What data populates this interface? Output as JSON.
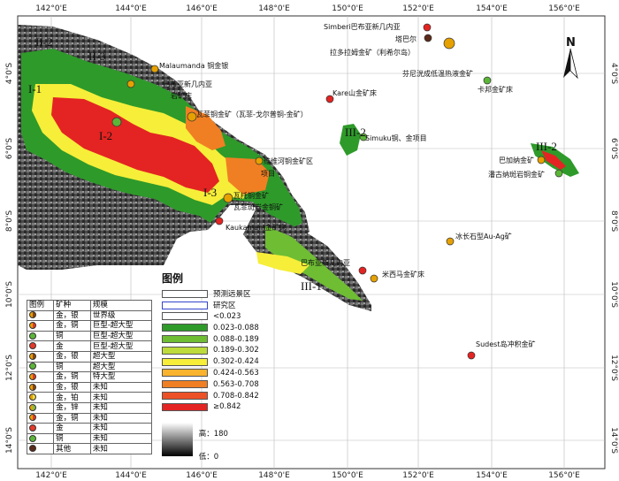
{
  "axes": {
    "top_ticks": [
      "142°0'E",
      "144°0'E",
      "146°0'E",
      "148°0'E",
      "150°0'E",
      "152°0'E",
      "154°0'E",
      "156°0'E"
    ],
    "bottom_ticks": [
      "142°0'E",
      "144°0'E",
      "146°0'E",
      "148°0'E",
      "150°0'E",
      "152°0'E",
      "154°0'E",
      "156°0'E"
    ],
    "left_ticks": [
      "4°0'S",
      "6°0'S",
      "8°0'S",
      "10°0'S",
      "12°0'S",
      "14°0'S"
    ],
    "right_ticks": [
      "4°0'S",
      "6°0'S",
      "8°0'S",
      "10°0'S",
      "12°0'S",
      "14°0'S"
    ]
  },
  "north_arrow": "N",
  "regions": [
    "II-2",
    "II-3",
    "I-1",
    "I-2",
    "I-3",
    "III-1",
    "III-2",
    "III-2"
  ],
  "map_labels": {
    "simberi": "Simberi巴布亚新几内亚",
    "tabar": "塔巴尔",
    "lihir": "拉多拉姆金矿（利希尔岛）",
    "fennell": "芬尼洸成低温热液金矿",
    "karbon": "卡邦金矿床",
    "kare": "Kare山金矿床",
    "simuku": "Simuku铜、金项目",
    "bajana": "巴加纳金矿",
    "panguna": "潘古纳斑岩铜金矿",
    "malaumanda": "Malaumanda 铜金银",
    "png_left": "巴布亚新几内亚",
    "porgera_frag": "岩矿床",
    "wafi": "瓦菲铜金矿（瓦菲-戈尔普铜-金矿）",
    "weiwei": "维维河铜金矿区",
    "hidden": "项目",
    "kerema": "瓦托铜金矿",
    "golpu": "瓦菲斑岩金铜矿",
    "kainantu": "Kaukamani金矿床",
    "png_right": "巴布亚新几内亚",
    "misima": "米西马金矿床",
    "woodlark": "冰长石型Au-Ag矿",
    "sudest": "Sudest岛冲积金矿"
  },
  "legend": {
    "title": "图例",
    "items": [
      "预测远景区",
      "研究区",
      "<0.023",
      "0.023-0.088",
      "0.088-0.189",
      "0.189-0.302",
      "0.302-0.424",
      "0.424-0.563",
      "0.563-0.708",
      "0.708-0.842",
      "≥0.842"
    ],
    "colors": [
      "#ffffff",
      "#ffffff",
      "#ffffff",
      "#2e9a2a",
      "#6ebd33",
      "#bddb3a",
      "#f6ee39",
      "#f9b32d",
      "#f07f23",
      "#ec5026",
      "#e42422"
    ],
    "elevation_high": "高：180",
    "elevation_low": "低：0"
  },
  "mineral_table": {
    "headers": [
      "图例",
      "矿种",
      "规模"
    ],
    "rows": [
      [
        "金，银",
        "世界级"
      ],
      [
        "金，铜",
        "巨型-超大型"
      ],
      [
        "铜",
        "巨型-超大型"
      ],
      [
        "金",
        "巨型-超大型"
      ],
      [
        "金，银",
        "超大型"
      ],
      [
        "铜",
        "超大型"
      ],
      [
        "金，铜",
        "特大型"
      ],
      [
        "金，银",
        "未知"
      ],
      [
        "金，铂",
        "未知"
      ],
      [
        "金，锌",
        "未知"
      ],
      [
        "金，铜",
        "未知"
      ],
      [
        "金",
        "未知"
      ],
      [
        "铜",
        "未知"
      ],
      [
        "其他",
        "未知"
      ]
    ],
    "dot_colors": [
      [
        "#e6a100",
        "#8b4513"
      ],
      [
        "#e6a100",
        "#e43a2a"
      ],
      [
        "#5bb638",
        "#5bb638"
      ],
      [
        "#e43a2a",
        "#e43a2a"
      ],
      [
        "#e6a100",
        "#8b4513"
      ],
      [
        "#5bb638",
        "#5bb638"
      ],
      [
        "#e6a100",
        "#e43a2a"
      ],
      [
        "#e6a100",
        "#8b4513"
      ],
      [
        "#e6a100",
        "#e9d94a"
      ],
      [
        "#e6a100",
        "#7fbf4a"
      ],
      [
        "#e6a100",
        "#e43a2a"
      ],
      [
        "#e43a2a",
        "#e43a2a"
      ],
      [
        "#5bb638",
        "#5bb638"
      ],
      [
        "#5a2a1a",
        "#5a2a1a"
      ]
    ]
  }
}
